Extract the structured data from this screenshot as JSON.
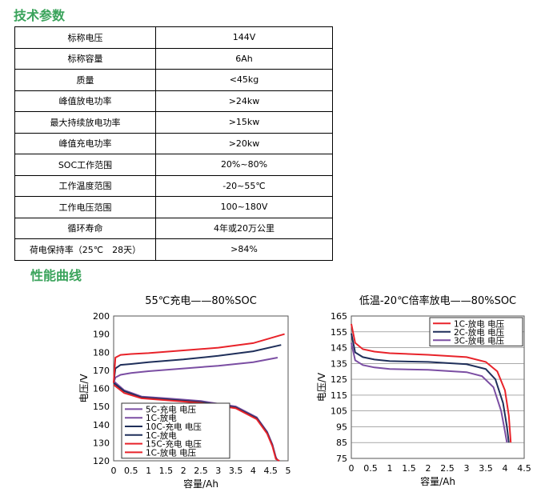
{
  "headings": {
    "tech_params": "技术参数",
    "performance": "性能曲线"
  },
  "params": [
    {
      "label": "标称电压",
      "value": "144V"
    },
    {
      "label": "标称容量",
      "value": "6Ah"
    },
    {
      "label": "质量",
      "value": "<45kg"
    },
    {
      "label": "峰值放电功率",
      "value": ">24kw"
    },
    {
      "label": "最大持续放电功率",
      "value": ">15kw"
    },
    {
      "label": "峰值充电功率",
      "value": ">20kw"
    },
    {
      "label": "SOC工作范围",
      "value": "20%~80%"
    },
    {
      "label": "工作温度范围",
      "value": "-20~55℃"
    },
    {
      "label": "工作电压范围",
      "value": "100~180V"
    },
    {
      "label": "循环寿命",
      "value": "4年或20万公里"
    },
    {
      "label": "荷电保持率（25℃　28天）",
      "value": ">84%"
    }
  ],
  "chart_data": [
    {
      "type": "line",
      "title": "55℃充电——80%SOC",
      "xlabel": "容量/Ah",
      "ylabel": "电压/V",
      "xlim": [
        0,
        5
      ],
      "ylim": [
        120,
        200
      ],
      "xticks": [
        "0",
        "0.5",
        "1",
        "1.5",
        "2",
        "2.5",
        "3",
        "3.5",
        "4",
        "4.5",
        "5"
      ],
      "yticks": [
        "120",
        "130",
        "140",
        "150",
        "160",
        "170",
        "180",
        "190",
        "200"
      ],
      "grid": false,
      "legend": "bottom-left",
      "series": [
        {
          "name": "5C-充电 电压",
          "color": "#7b4ea3",
          "x": [
            0,
            0.05,
            0.2,
            0.5,
            1,
            2,
            3,
            4,
            4.7
          ],
          "y": [
            163,
            166,
            167.5,
            168.5,
            169.5,
            171,
            172.5,
            174.5,
            177
          ]
        },
        {
          "name": "1C-放电",
          "color": "#7b4ea3",
          "x": [
            0,
            0.3,
            0.8,
            1.5,
            2.5,
            3.5,
            4.1,
            4.4,
            4.55,
            4.65,
            4.7
          ],
          "y": [
            164,
            159,
            155.5,
            154.5,
            153,
            150,
            144,
            136,
            129,
            122,
            120
          ]
        },
        {
          "name": "10C-充电 电压",
          "color": "#1f2f5a",
          "x": [
            0,
            0.05,
            0.2,
            0.5,
            1,
            2,
            3,
            4,
            4.8
          ],
          "y": [
            163,
            171,
            173,
            173.5,
            174.5,
            176,
            178,
            180.5,
            184
          ]
        },
        {
          "name": "1C-放电",
          "color": "#1f2f5a",
          "x": [
            0,
            0.3,
            0.8,
            1.5,
            2.5,
            3.5,
            4.1,
            4.4,
            4.55,
            4.65,
            4.72
          ],
          "y": [
            163,
            158.5,
            155,
            154,
            152.5,
            149.5,
            143.5,
            135.5,
            128.5,
            121.5,
            120
          ]
        },
        {
          "name": "15C-充电 电压",
          "color": "#e8232a",
          "x": [
            0,
            0.05,
            0.2,
            0.5,
            1,
            2,
            3,
            4,
            4.9
          ],
          "y": [
            163,
            177,
            178.5,
            179,
            179.5,
            181,
            182.5,
            185,
            190
          ]
        },
        {
          "name": "1C-放电 电压",
          "color": "#e8232a",
          "x": [
            0,
            0.3,
            0.8,
            1.5,
            2.5,
            3.5,
            4.1,
            4.4,
            4.55,
            4.65,
            4.75
          ],
          "y": [
            162,
            157.5,
            154.5,
            153.5,
            152,
            149,
            143,
            135,
            128,
            121,
            120
          ]
        }
      ]
    },
    {
      "type": "line",
      "title": "低温-20℃倍率放电——80%SOC",
      "xlabel": "容量/Ah",
      "ylabel": "电压/V",
      "xlim": [
        0,
        4.5
      ],
      "ylim": [
        75,
        165
      ],
      "xticks": [
        "0",
        "0.5",
        "1",
        "1.5",
        "2",
        "2.5",
        "3",
        "3.5",
        "4",
        "4.5"
      ],
      "yticks": [
        "75",
        "85",
        "95",
        "105",
        "115",
        "125",
        "135",
        "145",
        "155",
        "165"
      ],
      "grid": true,
      "legend": "top-right",
      "series": [
        {
          "name": "1C-放电 电压",
          "color": "#e8232a",
          "x": [
            0,
            0.1,
            0.3,
            0.6,
            1,
            2,
            3,
            3.5,
            3.8,
            4,
            4.1,
            4.15
          ],
          "y": [
            160,
            148,
            144,
            142.5,
            141.5,
            140.5,
            139,
            136,
            130,
            118,
            102,
            85
          ]
        },
        {
          "name": "2C-放电 电压",
          "color": "#1f2f5a",
          "x": [
            0,
            0.1,
            0.3,
            0.6,
            1,
            2,
            3,
            3.5,
            3.75,
            3.95,
            4.05,
            4.1
          ],
          "y": [
            154,
            142,
            139,
            137.5,
            136.5,
            136,
            134.5,
            131.5,
            125,
            110,
            95,
            85
          ]
        },
        {
          "name": "3C-放电 电压",
          "color": "#7b4ea3",
          "x": [
            0,
            0.1,
            0.3,
            0.6,
            1,
            2,
            3,
            3.4,
            3.7,
            3.9,
            4,
            4.05
          ],
          "y": [
            148,
            137,
            134,
            132.5,
            131.5,
            131,
            129.5,
            127,
            120,
            105,
            92,
            85
          ]
        }
      ]
    }
  ]
}
